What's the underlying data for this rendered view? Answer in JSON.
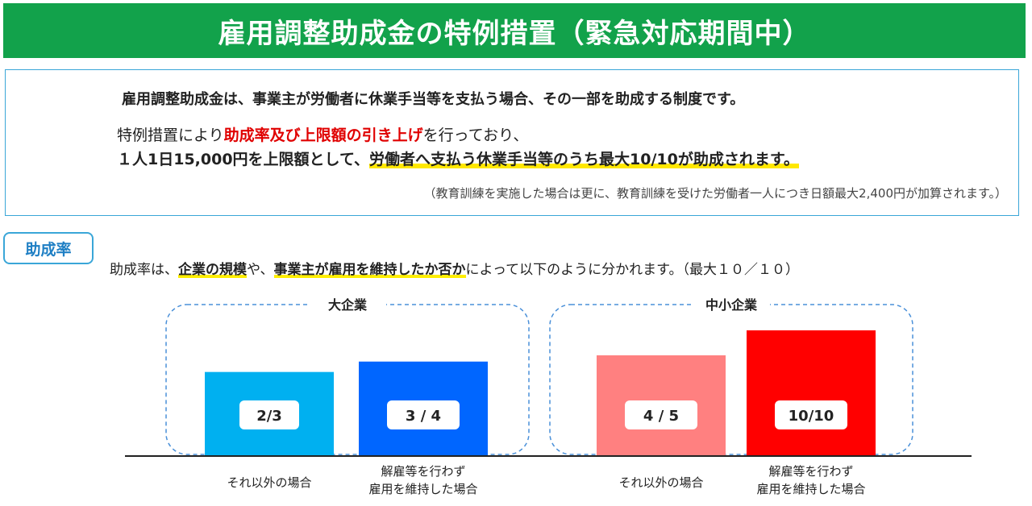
{
  "title": "雇用調整助成金の特例措置（緊急対応期間中）",
  "info": {
    "line1": "雇用調整助成金は、事業主が労働者に休業手当等を支払う場合、その一部を助成する制度です。",
    "line2_pre": "特例措置により",
    "line2_red": "助成率及び上限額の引き上げ",
    "line2_post": "を行っており、",
    "line3_pre": "１人1日15,000円を上限額として、",
    "line3_hl": "労働者へ支払う休業手当等のうち最大10/10が助成されます。",
    "line4": "（教育訓練を実施した場合は更に、教育訓練を受けた労働者一人につき日額最大2,400円が加算されます。）"
  },
  "rate_section": {
    "label": "助成率",
    "desc_pre": "助成率は、",
    "desc_hl1": "企業の規模",
    "desc_mid": "や、",
    "desc_hl2": "事業主が雇用を維持したか否か",
    "desc_post": "によって以下のように分かれます。（最大１０／１０）"
  },
  "chart_data": {
    "type": "bar",
    "groups": [
      {
        "name": "大企業",
        "bars": [
          {
            "category": "それ以外の場合",
            "value": 0.6667,
            "label": "2/3",
            "color": "#00b0f0"
          },
          {
            "category": "解雇等を行わず\n雇用を維持した場合",
            "value": 0.75,
            "label": "3 / 4",
            "color": "#0066ff"
          }
        ]
      },
      {
        "name": "中小企業",
        "bars": [
          {
            "category": "それ以外の場合",
            "value": 0.8,
            "label": "4 / 5",
            "color": "#ff8080"
          },
          {
            "category": "解雇等を行わず\n雇用を維持した場合",
            "value": 1.0,
            "label": "10/10",
            "color": "#ff0000"
          }
        ]
      }
    ],
    "ylim": [
      0,
      1
    ]
  }
}
